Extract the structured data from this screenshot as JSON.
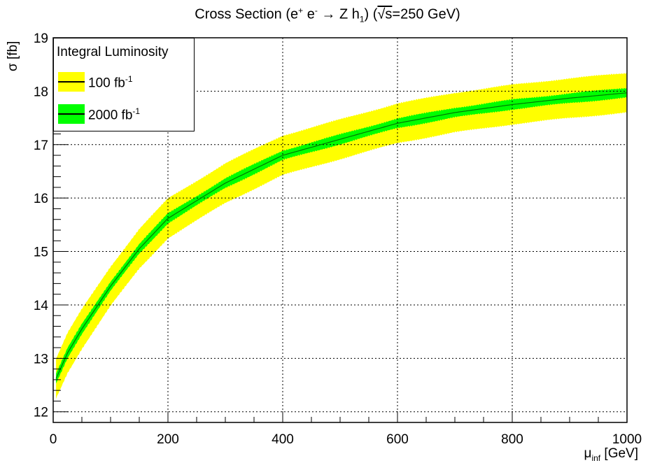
{
  "chart_data": {
    "type": "area",
    "title_main": "Cross Section (e",
    "title_sup1": "+",
    "title_mid1": " e",
    "title_sup2": "-",
    "title_mid2": " → Z h",
    "title_sub1": "1",
    "title_mid3": ") (",
    "title_sqrt": "√s",
    "title_end": "=250 GeV)",
    "ylabel": "σ [fb]",
    "xlabel_sym": "μ",
    "xlabel_sub": "inf",
    "xlabel_unit": " [GeV]",
    "xlim": [
      0,
      1000
    ],
    "ylim": [
      11.8,
      19.0
    ],
    "x_ticks": [
      0,
      200,
      400,
      600,
      800,
      1000
    ],
    "x_tick_labels": [
      "0",
      "200",
      "400",
      "600",
      "800",
      "1000"
    ],
    "y_ticks": [
      12,
      13,
      14,
      15,
      16,
      17,
      18,
      19
    ],
    "y_tick_labels": [
      "12",
      "13",
      "14",
      "15",
      "16",
      "17",
      "18",
      "19"
    ],
    "grid": true,
    "legend_title": "Integral Luminosity",
    "legend_position": "top-left",
    "x": [
      5,
      25,
      50,
      100,
      150,
      200,
      300,
      400,
      500,
      600,
      700,
      800,
      900,
      1000
    ],
    "central": [
      12.62,
      13.1,
      13.55,
      14.35,
      15.05,
      15.62,
      16.28,
      16.8,
      17.1,
      17.4,
      17.6,
      17.75,
      17.87,
      17.97
    ],
    "series": [
      {
        "name_base": "100 fb",
        "name_sup": "-1",
        "color": "#ffff00",
        "half_width": 0.37
      },
      {
        "name_base": "2000 fb",
        "name_sup": "-1",
        "color": "#00ff00",
        "half_width": 0.09
      }
    ]
  }
}
